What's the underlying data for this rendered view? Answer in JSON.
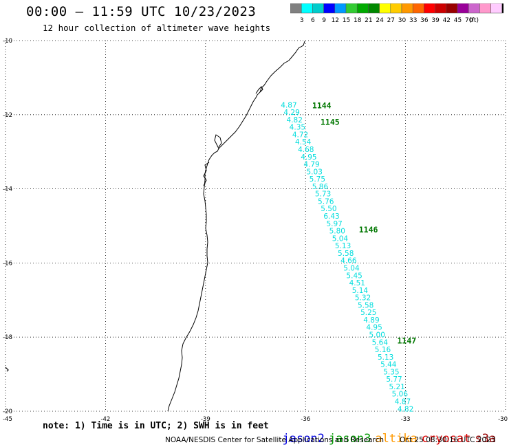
{
  "header": {
    "title": "00:00 – 11:59 UTC 10/23/2023",
    "subtitle": "12 hour collection of altimeter wave heights"
  },
  "colorbar": {
    "colors": [
      "#808080",
      "#00ffff",
      "#00cccc",
      "#0000ff",
      "#0099ff",
      "#33cc33",
      "#00aa00",
      "#008800",
      "#ffff00",
      "#ffcc00",
      "#ff9900",
      "#ff6600",
      "#ff0000",
      "#cc0000",
      "#990000",
      "#990099",
      "#cc66cc",
      "#ff99cc",
      "#ffccff",
      "#000000"
    ],
    "labels": [
      "3",
      "6",
      "9",
      "12",
      "15",
      "18",
      "21",
      "24",
      "27",
      "30",
      "33",
      "36",
      "39",
      "42",
      "45",
      "70",
      "(ft)"
    ]
  },
  "axes": {
    "lat_labels": [
      "-10",
      "-12",
      "-14",
      "-16",
      "-18",
      "-20"
    ],
    "lat_values": [
      -10,
      -12,
      -14,
      -16,
      -18,
      -20
    ],
    "lon_labels": [
      "-45",
      "-42",
      "-39",
      "-36",
      "-33",
      "-30"
    ],
    "lon_values": [
      -45,
      -42,
      -39,
      -36,
      -33,
      -30
    ],
    "lon_range": [
      -45,
      -30
    ],
    "lat_range": [
      -20,
      -10
    ],
    "grid": "dotted"
  },
  "track": {
    "color": "#00dddd",
    "values": [
      "4.87",
      "4.29",
      "4.82",
      "4.35",
      "4.72",
      "4.54",
      "4.68",
      "4.95",
      "4.79",
      "5.03",
      "5.75",
      "5.86",
      "5.73",
      "5.76",
      "5.50",
      "6.43",
      "5.97",
      "5.80",
      "5.04",
      "5.13",
      "5.58",
      "4.66",
      "5.04",
      "5.45",
      "4.51",
      "5.14",
      "5.32",
      "5.58",
      "5.25",
      "4.89",
      "4.95",
      "5.00",
      "5.64",
      "5.16",
      "5.13",
      "5.44",
      "5.35",
      "5.77",
      "5.21",
      "5.06",
      "4.87",
      "4.82"
    ]
  },
  "time_markers": {
    "color": "#007700",
    "items": [
      {
        "label": "1144",
        "lon": -35.8,
        "lat": -11.75
      },
      {
        "label": "1145",
        "lon": -35.55,
        "lat": -12.2
      },
      {
        "label": "1146",
        "lon": -34.4,
        "lat": -15.1
      },
      {
        "label": "1147",
        "lon": -33.25,
        "lat": -18.1
      }
    ]
  },
  "footer": {
    "note": "note: 1) Time is in UTC; 2) SWH is in feet",
    "satellites": [
      {
        "name": "jason2",
        "color": "#0000dd"
      },
      {
        "name": "jason3",
        "color": "#009900"
      },
      {
        "name": "altika",
        "color": "#ff9900"
      },
      {
        "name": "cryosat",
        "color": "#dd0000"
      },
      {
        "name": "s3a",
        "color": "#990000"
      }
    ],
    "credit": "NOAA/NESDIS Center for Satellite Applications and Research",
    "timestamp": "Oct 25 08:30:16 UTC 2023"
  }
}
